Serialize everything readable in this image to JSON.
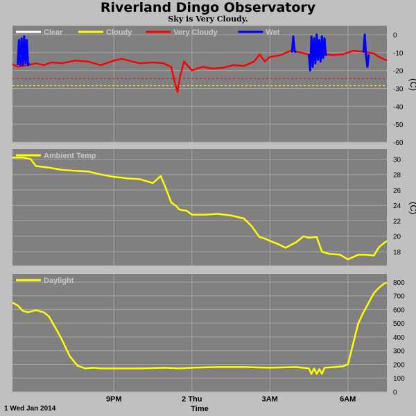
{
  "title": "Riverland Dingo Observatory",
  "subtitle": "Sky is Very Cloudy.",
  "footer_date": "1 Wed Jan 2014",
  "x_axis_title": "Time",
  "x_ticks": [
    {
      "h": 3.0,
      "label": "9PM"
    },
    {
      "h": 6.0,
      "label": "2 Thu"
    },
    {
      "h": 9.0,
      "label": "3AM"
    },
    {
      "h": 12.0,
      "label": "6AM"
    }
  ],
  "x_range": [
    -0.9,
    13.5
  ],
  "colors": {
    "plot_bg": "#808080",
    "grid": "#a6a6a6",
    "yellow": "#ffff00",
    "red": "#ff0000",
    "blue": "#0000ff",
    "white": "#ffffff"
  },
  "chart_data": [
    {
      "type": "line",
      "title": "",
      "ylabel": "(C)",
      "ylim": [
        -60,
        5
      ],
      "y_ticks": [
        0,
        -10,
        -20,
        -30,
        -40,
        -50,
        -60
      ],
      "legend_placement": "top-left",
      "series": [
        {
          "name": "Clear",
          "color": "#ffffff",
          "x": [],
          "y": []
        },
        {
          "name": "Cloudy",
          "color": "#ffff00",
          "x": [],
          "y": []
        },
        {
          "name": "Very Cloudy",
          "color": "#ff0000",
          "x": [
            -0.9,
            -0.7,
            -0.5,
            -0.3,
            0.0,
            0.3,
            0.6,
            1.0,
            1.5,
            2.0,
            2.5,
            3.0,
            3.3,
            3.7,
            4.0,
            4.5,
            4.9,
            5.2,
            5.35,
            5.45,
            5.55,
            5.7,
            6.0,
            6.4,
            6.8,
            7.2,
            7.6,
            8.0,
            8.4,
            8.6,
            8.8,
            9.0,
            9.4,
            9.8,
            10.2,
            10.6,
            11.0,
            11.4,
            11.8,
            12.2,
            12.6,
            13.0,
            13.2,
            13.5
          ],
          "y": [
            -16.5,
            -18,
            -17.5,
            -17,
            -16,
            -17,
            -15.5,
            -16,
            -14.5,
            -15,
            -17,
            -14.5,
            -13.5,
            -15,
            -16,
            -15.5,
            -16,
            -18,
            -27,
            -32,
            -23,
            -15,
            -20,
            -18,
            -19,
            -18.5,
            -17,
            -17.5,
            -15,
            -11,
            -15,
            -12.5,
            -11.5,
            -9,
            -10,
            -11.5,
            -10.5,
            -11.5,
            -11,
            -9,
            -9.5,
            -10.5,
            -12.5,
            -14.5
          ]
        },
        {
          "name": "Wet",
          "color": "#0000ff",
          "x": [
            -0.7,
            -0.65,
            -0.6,
            -0.55,
            -0.5,
            -0.45,
            -0.4,
            -0.35,
            -0.3,
            -0.25
          ],
          "y": [
            -17,
            -3,
            -17,
            -2,
            -17,
            -1,
            -16,
            -3,
            -17,
            -16
          ]
        },
        {
          "name": "Wet",
          "color": "#0000ff",
          "x": [
            9.85,
            9.9,
            9.95,
            10.0
          ],
          "y": [
            -10,
            -1,
            -9,
            -10
          ]
        },
        {
          "name": "Wet",
          "color": "#0000ff",
          "x": [
            10.5,
            10.55,
            10.6,
            10.65,
            10.7,
            10.75,
            10.8,
            10.85,
            10.9,
            10.95,
            11.0,
            11.05,
            11.1,
            11.15
          ],
          "y": [
            -11,
            -20,
            -1,
            -18,
            -2,
            -16,
            0,
            -14,
            -3,
            -15,
            -1,
            -13,
            -2,
            -12
          ]
        },
        {
          "name": "Wet",
          "color": "#0000ff",
          "x": [
            12.6,
            12.65,
            12.7,
            12.75,
            12.8
          ],
          "y": [
            -10,
            0,
            -12,
            -18,
            -11
          ]
        }
      ],
      "thresholds": [
        {
          "y": -24.5,
          "color": "#ff0000"
        },
        {
          "y": -28.5,
          "color": "#ffff00"
        }
      ]
    },
    {
      "type": "line",
      "title": "",
      "ylabel": "(C)",
      "ylim": [
        16.2,
        31.3
      ],
      "y_ticks": [
        30,
        28,
        26,
        24,
        22,
        20,
        18
      ],
      "legend_placement": "top-left",
      "series": [
        {
          "name": "Ambient Temp",
          "color": "#ffff00",
          "x": [
            -0.9,
            -0.5,
            -0.2,
            0.0,
            0.5,
            1.0,
            1.5,
            2.0,
            2.5,
            3.0,
            3.3,
            3.5,
            4.0,
            4.5,
            4.8,
            5.0,
            5.2,
            5.4,
            5.5,
            5.6,
            5.8,
            6.0,
            6.5,
            7.0,
            7.5,
            8.0,
            8.3,
            8.6,
            8.8,
            9.0,
            9.3,
            9.6,
            10.0,
            10.3,
            10.5,
            10.8,
            11.0,
            11.3,
            11.7,
            12.0,
            12.4,
            12.7,
            13.0,
            13.2,
            13.5
          ],
          "y": [
            30.2,
            30.2,
            30,
            29.1,
            28.9,
            28.6,
            28.5,
            28.4,
            28,
            27.7,
            27.6,
            27.5,
            27.4,
            26.9,
            27.8,
            26.2,
            24.4,
            23.9,
            23.5,
            23.4,
            23.3,
            22.8,
            22.8,
            22.9,
            22.7,
            22.3,
            21.3,
            19.9,
            19.7,
            19.4,
            19.0,
            18.5,
            19.2,
            20.0,
            19.8,
            19.9,
            18.0,
            17.7,
            17.6,
            17.0,
            17.6,
            17.6,
            17.5,
            18.6,
            19.4
          ]
        }
      ]
    },
    {
      "type": "line",
      "title": "",
      "ylabel": "",
      "ylim": [
        0,
        860
      ],
      "y_ticks": [
        800,
        700,
        600,
        500,
        400,
        300,
        200,
        100,
        0
      ],
      "legend_placement": "top-left",
      "series": [
        {
          "name": "Daylight",
          "color": "#ffff00",
          "x": [
            -0.9,
            -0.7,
            -0.5,
            -0.3,
            0.0,
            0.3,
            0.5,
            0.8,
            1.0,
            1.3,
            1.6,
            1.9,
            2.2,
            2.5,
            3.0,
            4.0,
            5.0,
            5.5,
            6.0,
            7.0,
            8.0,
            9.0,
            10.0,
            10.5,
            10.6,
            10.7,
            10.8,
            10.9,
            11.0,
            11.1,
            11.5,
            11.8,
            12.0,
            12.2,
            12.4,
            12.6,
            12.8,
            13.0,
            13.2,
            13.4,
            13.5
          ],
          "y": [
            650,
            630,
            590,
            580,
            595,
            580,
            550,
            450,
            380,
            260,
            190,
            170,
            175,
            170,
            170,
            170,
            175,
            170,
            175,
            180,
            180,
            175,
            180,
            170,
            130,
            170,
            130,
            165,
            130,
            175,
            180,
            185,
            200,
            350,
            500,
            580,
            650,
            720,
            760,
            790,
            795
          ]
        }
      ]
    }
  ]
}
